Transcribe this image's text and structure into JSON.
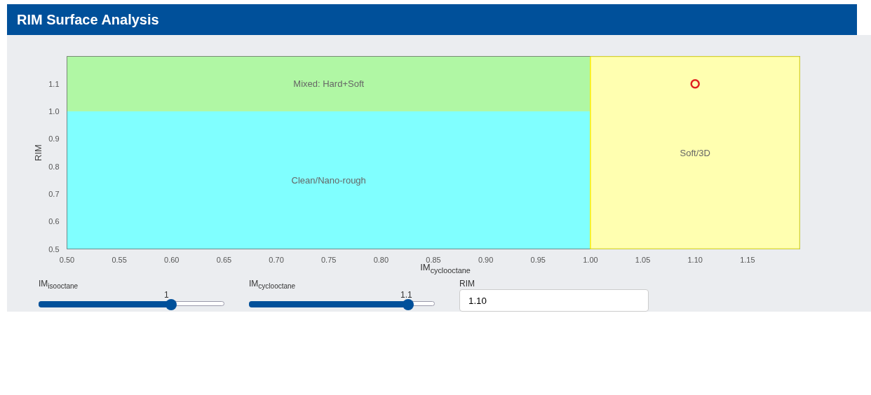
{
  "chart_data": {
    "type": "scatter",
    "title": "RIM Surface Analysis",
    "xlabel": "IM$_{cyclooctane}$",
    "ylabel": "RIM",
    "x": [
      1.1
    ],
    "series": [
      {
        "color": "#e02020",
        "values": [
          1.1
        ]
      }
    ],
    "marker": "circle",
    "xlim": [
      0.5,
      1.2
    ],
    "ylim": [
      0.5,
      1.2
    ],
    "xticks": [
      {
        "value": 0.5,
        "label": "0.50"
      },
      0.55,
      {
        "value": 0.6,
        "label": "0.60"
      },
      0.65,
      {
        "value": 0.7,
        "label": "0.70"
      },
      0.75,
      {
        "value": 0.8,
        "label": "0.80"
      },
      0.85,
      {
        "value": 0.9,
        "label": "0.90"
      },
      0.95,
      {
        "value": 1.0,
        "label": "1.00"
      },
      1.05,
      {
        "value": 1.1,
        "label": "1.10"
      },
      1.15
    ],
    "yticks": [
      0.5,
      0.6,
      0.7,
      0.8,
      0.9,
      {
        "value": 1.0,
        "label": "1.0"
      },
      1.1
    ],
    "bands": [
      {
        "axis": "y",
        "from": 1.0,
        "to": 1.2,
        "label": "Mixed: Hard+Soft",
        "color": "#b0f7a4"
      },
      {
        "axis": "y",
        "from": 0.5,
        "to": 1.0,
        "label": "Clean/Nano-rough",
        "color": "#80ffff"
      },
      {
        "axis": "x",
        "from": 1.0,
        "to": 1.2,
        "label": "Soft/3D",
        "color": "#ffffb0"
      }
    ],
    "annotations": [
      "IM$_{isooctane}$",
      "1",
      "IM$_{cyclooctane}$",
      "1.1",
      "RIM",
      "1.10"
    ]
  }
}
